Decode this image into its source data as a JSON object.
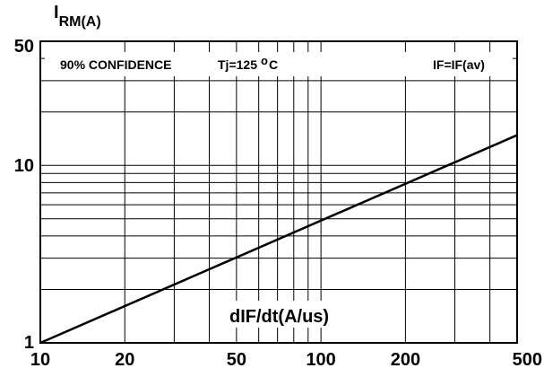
{
  "chart_data": {
    "type": "line",
    "title": "",
    "ylabel_main": "I",
    "ylabel_sub": "RM(A)",
    "xlabel": "dIF/dt(A/us)",
    "x_scale": "log",
    "y_scale": "log",
    "xlim": [
      10,
      500
    ],
    "ylim": [
      1,
      50
    ],
    "x_ticks": [
      "10",
      "20",
      "50",
      "100",
      "200",
      "500"
    ],
    "x_tick_values": [
      10,
      20,
      50,
      100,
      200,
      500
    ],
    "y_ticks": [
      "1",
      "10",
      "50"
    ],
    "y_tick_values": [
      1,
      10,
      50
    ],
    "x_grid": [
      20,
      30,
      40,
      50,
      60,
      70,
      80,
      90,
      100,
      200,
      300,
      400
    ],
    "y_grid": [
      2,
      3,
      4,
      5,
      6,
      7,
      8,
      9,
      10,
      20,
      30,
      40
    ],
    "grid": true,
    "annotation_left_a": "90% CONFIDENCE",
    "annotation_left_b": "Tj=125",
    "annotation_left_deg": "o",
    "annotation_left_c": "C",
    "annotation_right": "IF=IF(av)",
    "series": [
      {
        "x": [
          10,
          500
        ],
        "y": [
          1.0,
          14.8
        ]
      }
    ],
    "colors": {
      "line": "#000000",
      "grid": "#000000",
      "background": "#ffffff"
    }
  }
}
